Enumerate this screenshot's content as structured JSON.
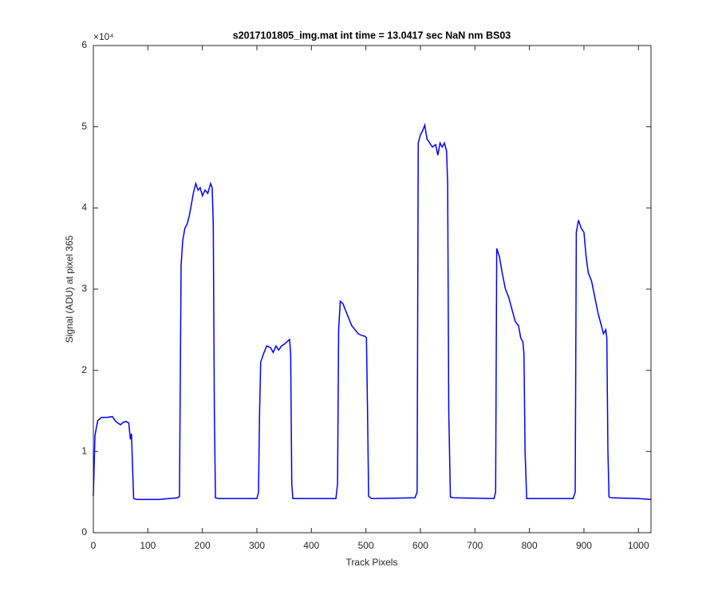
{
  "chart_data": {
    "type": "line",
    "title": "s2017101805_img.mat int time = 13.0417 sec  NaN nm BS03",
    "x_label": "Track Pixels",
    "y_label": "Signal (ADU) at pixel 365",
    "y_exponent_label": "×10⁴",
    "color": "#0000ff",
    "x": [
      0,
      3,
      8,
      15,
      25,
      35,
      40,
      45,
      50,
      55,
      60,
      65,
      68,
      70,
      72,
      74,
      80,
      120,
      155,
      158,
      161,
      164,
      168,
      172,
      176,
      180,
      184,
      188,
      192,
      196,
      200,
      205,
      210,
      215,
      218,
      220,
      222,
      224,
      230,
      300,
      303,
      305,
      307,
      312,
      318,
      325,
      330,
      335,
      340,
      345,
      350,
      355,
      360,
      362,
      364,
      366,
      400,
      445,
      448,
      450,
      453,
      458,
      462,
      468,
      474,
      480,
      486,
      492,
      498,
      501,
      503,
      505,
      510,
      590,
      594,
      596,
      600,
      604,
      608,
      612,
      617,
      622,
      628,
      632,
      636,
      640,
      644,
      648,
      650,
      652,
      655,
      660,
      735,
      738,
      740,
      745,
      750,
      756,
      762,
      768,
      774,
      780,
      784,
      788,
      790,
      792,
      795,
      800,
      880,
      884,
      886,
      890,
      895,
      900,
      904,
      908,
      914,
      920,
      926,
      932,
      936,
      940,
      942,
      944,
      946,
      950,
      1000,
      1023
    ],
    "values": [
      0.45,
      1.2,
      1.38,
      1.42,
      1.42,
      1.43,
      1.38,
      1.35,
      1.33,
      1.36,
      1.37,
      1.35,
      1.15,
      1.22,
      0.8,
      0.42,
      0.41,
      0.41,
      0.43,
      0.45,
      3.3,
      3.6,
      3.75,
      3.8,
      3.9,
      4.05,
      4.2,
      4.3,
      4.22,
      4.25,
      4.15,
      4.22,
      4.18,
      4.3,
      4.25,
      3.8,
      1.5,
      0.43,
      0.42,
      0.42,
      0.5,
      1.5,
      2.1,
      2.2,
      2.3,
      2.28,
      2.22,
      2.3,
      2.25,
      2.3,
      2.32,
      2.35,
      2.38,
      2.2,
      0.6,
      0.42,
      0.42,
      0.42,
      0.6,
      2.5,
      2.85,
      2.82,
      2.75,
      2.65,
      2.55,
      2.5,
      2.45,
      2.43,
      2.42,
      2.4,
      1.5,
      0.45,
      0.42,
      0.43,
      0.5,
      4.8,
      4.9,
      4.95,
      5.02,
      4.85,
      4.8,
      4.75,
      4.78,
      4.65,
      4.8,
      4.75,
      4.8,
      4.7,
      4.3,
      1.5,
      0.44,
      0.43,
      0.42,
      0.5,
      3.5,
      3.4,
      3.2,
      3.0,
      2.9,
      2.75,
      2.6,
      2.55,
      2.4,
      2.35,
      2.2,
      1.0,
      0.42,
      0.42,
      0.42,
      0.5,
      3.7,
      3.85,
      3.75,
      3.7,
      3.4,
      3.2,
      3.1,
      2.9,
      2.7,
      2.55,
      2.45,
      2.5,
      2.4,
      1.0,
      0.44,
      0.43,
      0.42,
      0.41
    ],
    "xlim": [
      0,
      1023
    ],
    "xticks": [
      0,
      100,
      200,
      300,
      400,
      500,
      600,
      700,
      800,
      900,
      1000
    ],
    "ylim": [
      0,
      6
    ],
    "yticks": [
      0,
      1,
      2,
      3,
      4,
      5,
      6
    ]
  }
}
